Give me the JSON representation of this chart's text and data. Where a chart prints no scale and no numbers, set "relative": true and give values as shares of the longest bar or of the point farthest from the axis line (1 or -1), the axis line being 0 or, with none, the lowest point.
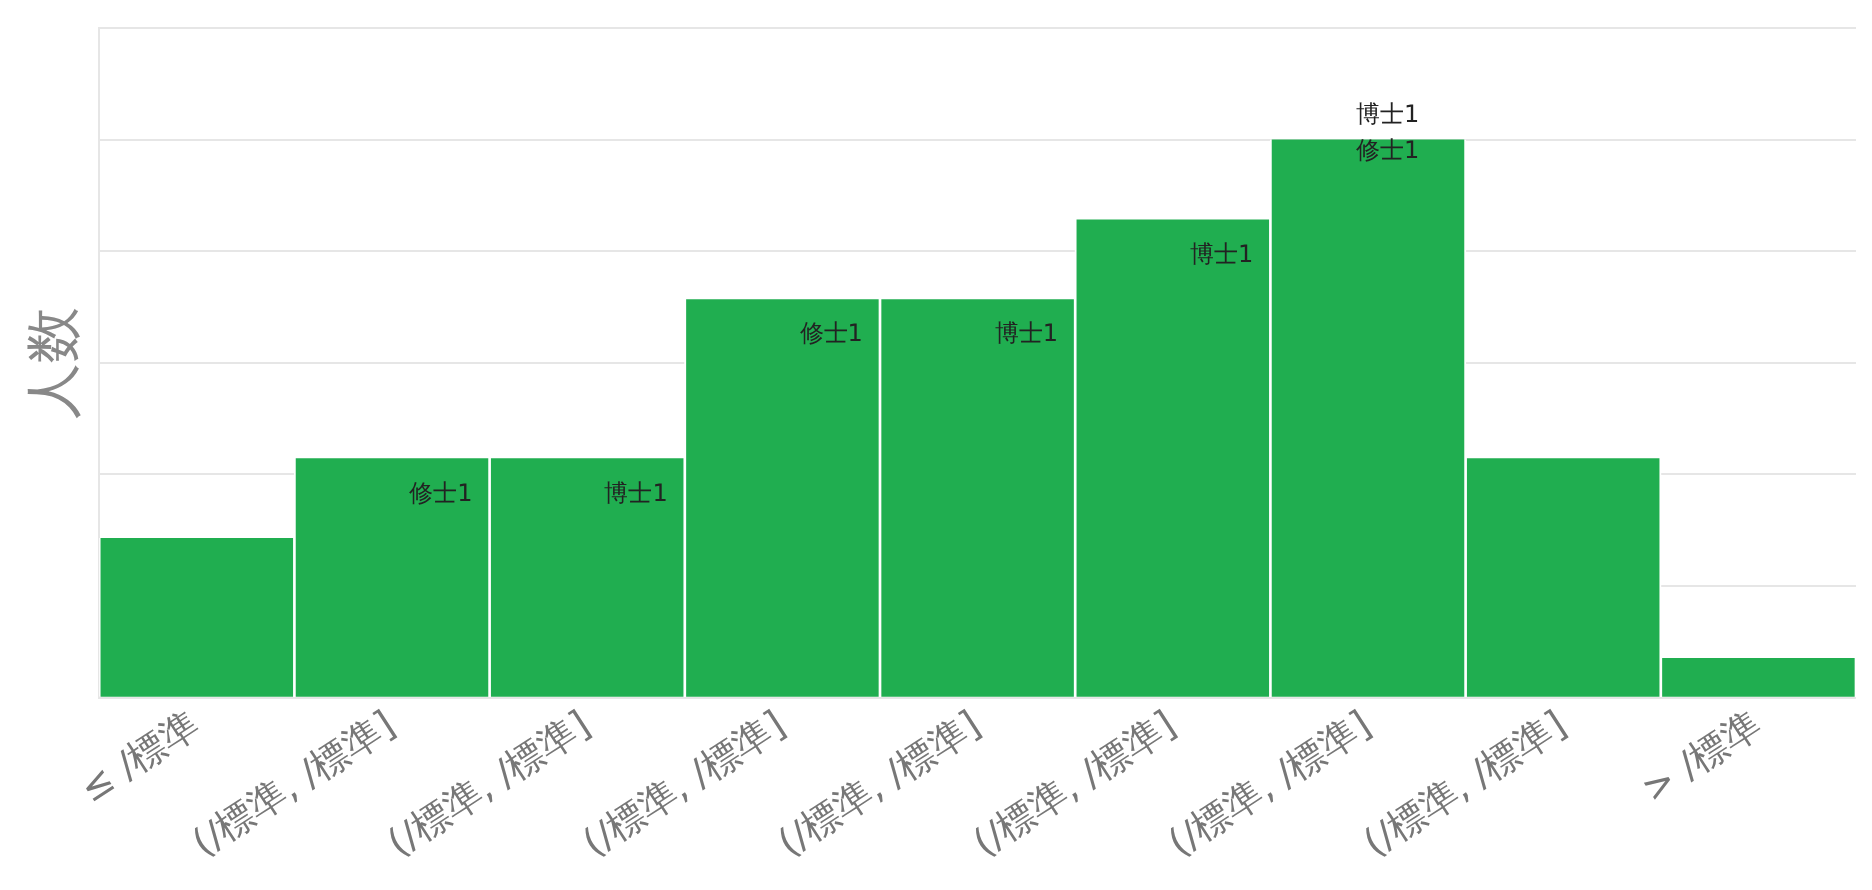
{
  "chart_data": {
    "type": "bar",
    "ylabel": "人数",
    "relative": true,
    "grid": "y",
    "legend": false,
    "categories": [
      "≤ /標準",
      "(/標準, /標準]",
      "(/標準, /標準]",
      "(/標準, /標準]",
      "(/標準, /標準]",
      "(/標準, /標準]",
      "(/標準, /標準]",
      "(/標準, /標準]",
      "> /標準"
    ],
    "values": [
      0.286,
      0.429,
      0.429,
      0.714,
      0.714,
      0.857,
      1,
      0.429,
      0.071
    ],
    "color": "#20ae50",
    "annotations": [
      "修士1",
      "博士1",
      "修士1",
      "博士1",
      "博士1",
      "博士1\n修士1"
    ]
  }
}
